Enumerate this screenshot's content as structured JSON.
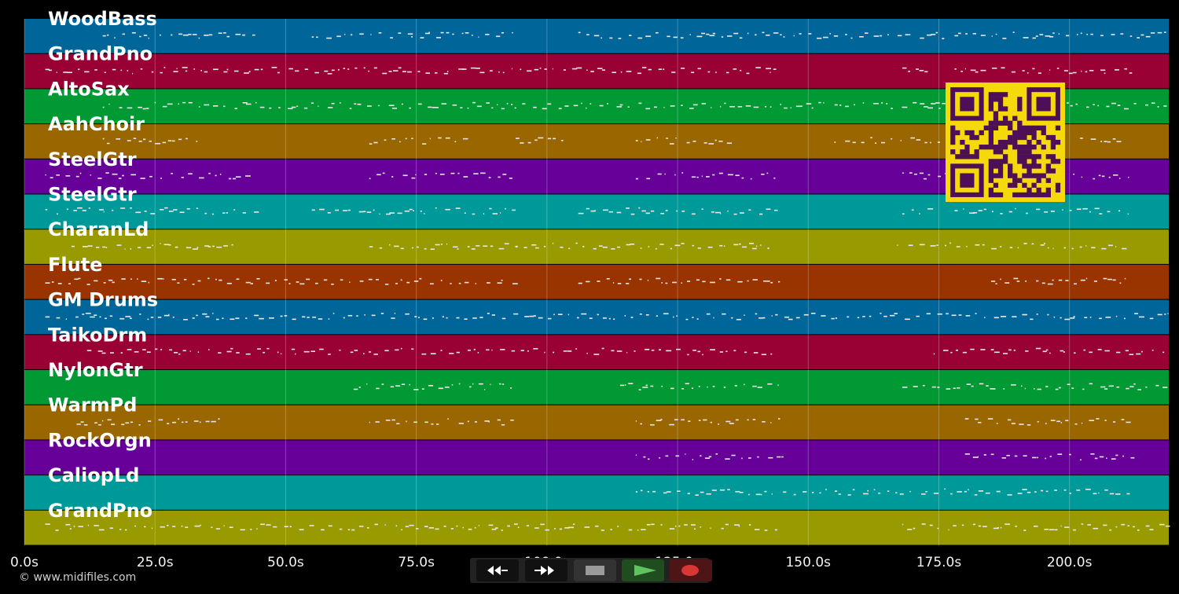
{
  "tracks": [
    {
      "name": "WoodBass",
      "color": "#006699"
    },
    {
      "name": "GrandPno",
      "color": "#990033"
    },
    {
      "name": "AltoSax",
      "color": "#009933"
    },
    {
      "name": "AahChoir",
      "color": "#996600"
    },
    {
      "name": "SteelGtr",
      "color": "#660099"
    },
    {
      "name": "SteelGtr",
      "color": "#009999"
    },
    {
      "name": "CharanLd",
      "color": "#999900"
    },
    {
      "name": "Flute",
      "color": "#993300"
    },
    {
      "name": "GM Drums",
      "color": "#006699"
    },
    {
      "name": "TaikoDrm",
      "color": "#990033"
    },
    {
      "name": "NylonGtr",
      "color": "#009933"
    },
    {
      "name": "WarmPd",
      "color": "#996600"
    },
    {
      "name": "RockOrgn",
      "color": "#660099"
    },
    {
      "name": "CaliopLd",
      "color": "#009999"
    },
    {
      "name": "GrandPno",
      "color": "#999900"
    }
  ],
  "timeline": {
    "ticks": [
      "0.0s",
      "25.0s",
      "50.0s",
      "75.0s",
      "100.0s",
      "125.0s",
      "150.0s",
      "175.0s",
      "200.0s"
    ],
    "tick_values": [
      0,
      25,
      50,
      75,
      100,
      125,
      150,
      175,
      200
    ],
    "range_seconds": [
      0,
      219
    ]
  },
  "copyright": "© www.midifiles.com",
  "transport": {
    "rewind_icon": "rewind-icon",
    "forward_icon": "fast-forward-icon",
    "stop_icon": "stop-icon",
    "play_icon": "play-icon",
    "record_icon": "record-icon"
  },
  "qr": {
    "fg": "#f5d90a",
    "bg": "#4d0f55"
  }
}
